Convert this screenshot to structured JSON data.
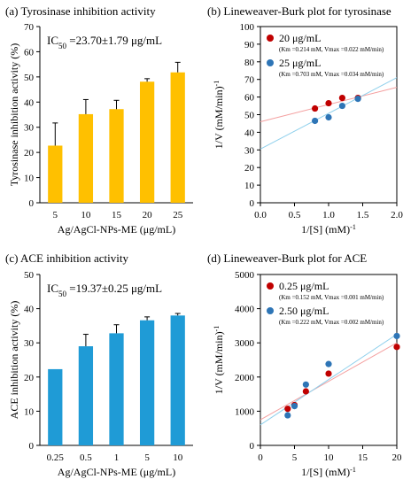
{
  "chart_data": [
    {
      "id": "a",
      "type": "bar",
      "title": "(a) Tyrosinase inhibition activity",
      "xlabel": "Ag/AgCl-NPs-ME (μg/mL)",
      "ylabel": "Tyrosinase inhibition activity (%)",
      "ylim": [
        0,
        70
      ],
      "yticks": [
        "0",
        "10",
        "20",
        "30",
        "40",
        "50",
        "60",
        "70"
      ],
      "categories": [
        "5",
        "10",
        "15",
        "20",
        "25"
      ],
      "values": [
        22.7,
        35.2,
        37.2,
        48.1,
        51.8
      ],
      "errors": [
        9.0,
        5.8,
        3.5,
        1.2,
        4.0
      ],
      "bar_color": "#ffc000",
      "annotation": {
        "prefix": "IC",
        "sub": "50",
        "text": " =23.70±1.79 μg/mL"
      }
    },
    {
      "id": "b",
      "type": "scatter",
      "title": "(b) Lineweaver-Burk plot for tyrosinase",
      "xlabel": "1/[S] (mM)",
      "xlabel_sup": "-1",
      "ylabel": "1/V (mM/min)",
      "ylabel_sup": "-1",
      "xlim": [
        0,
        2
      ],
      "ylim": [
        0,
        100
      ],
      "xticks": [
        "0.0",
        "0.5",
        "1.0",
        "1.5",
        "2.0"
      ],
      "yticks": [
        "0",
        "10",
        "20",
        "30",
        "40",
        "50",
        "60",
        "70",
        "80",
        "90",
        "100"
      ],
      "series": [
        {
          "name": "20 μg/mL",
          "detail": "(Km =0.214 mM, Vmax =0.022 mM/min)",
          "color": "#c00000",
          "line_color": "#f4a0a0",
          "x": [
            0.8,
            1.0,
            1.2,
            1.43
          ],
          "y": [
            53.5,
            56.5,
            59.5,
            59.5
          ],
          "fit": {
            "x": [
              0,
              2
            ],
            "y": [
              46.0,
              65.5
            ]
          }
        },
        {
          "name": "25 μg/mL",
          "detail": "(Km =0.703 mM, Vmax =0.034 mM/min)",
          "color": "#2e75b6",
          "line_color": "#8fd0ec",
          "x": [
            0.8,
            1.0,
            1.2,
            1.43
          ],
          "y": [
            46.5,
            48.5,
            55,
            59
          ],
          "fit": {
            "x": [
              0,
              2
            ],
            "y": [
              30.5,
              71.0
            ]
          }
        }
      ]
    },
    {
      "id": "c",
      "type": "bar",
      "title": "(c) ACE inhibition activity",
      "xlabel": "Ag/AgCl-NPs-ME (μg/mL)",
      "ylabel": "ACE inhibition activity (%)",
      "ylim": [
        0,
        50
      ],
      "yticks": [
        "0",
        "10",
        "20",
        "30",
        "40",
        "50"
      ],
      "categories": [
        "0.25",
        "0.5",
        "1",
        "5",
        "10"
      ],
      "values": [
        22.3,
        29.0,
        32.8,
        36.6,
        38.0
      ],
      "errors": [
        0,
        3.5,
        2.5,
        1.0,
        0.6
      ],
      "bar_color": "#1f9bd6",
      "annotation": {
        "prefix": "IC",
        "sub": "50",
        "text": " =19.37±0.25 μg/mL"
      }
    },
    {
      "id": "d",
      "type": "scatter",
      "title": "(d) Lineweaver-Burk plot for ACE",
      "xlabel": "1/[S] (mM)",
      "xlabel_sup": "-1",
      "ylabel": "1/V (mM/min)",
      "ylabel_sup": "-1",
      "xlim": [
        0,
        20
      ],
      "ylim": [
        0,
        5000
      ],
      "xticks": [
        "0",
        "5",
        "10",
        "15",
        "20"
      ],
      "yticks": [
        "0",
        "1000",
        "2000",
        "3000",
        "4000",
        "5000"
      ],
      "series": [
        {
          "name": "0.25 μg/mL",
          "detail": "(Km =0.152 mM, Vmax =0.001 mM/min)",
          "color": "#c00000",
          "line_color": "#f4a0a0",
          "x": [
            4,
            5,
            6.67,
            10,
            20
          ],
          "y": [
            1070,
            1180,
            1580,
            2100,
            2880
          ],
          "fit": {
            "x": [
              0,
              20
            ],
            "y": [
              750,
              3000
            ]
          }
        },
        {
          "name": "2.50 μg/mL",
          "detail": "(Km =0.222 mM, Vmax =0.002 mM/min)",
          "color": "#2e75b6",
          "line_color": "#8fd0ec",
          "x": [
            4,
            5,
            6.67,
            10,
            20
          ],
          "y": [
            880,
            1150,
            1780,
            2380,
            3200
          ],
          "fit": {
            "x": [
              0,
              20
            ],
            "y": [
              600,
              3250
            ]
          }
        }
      ]
    }
  ]
}
